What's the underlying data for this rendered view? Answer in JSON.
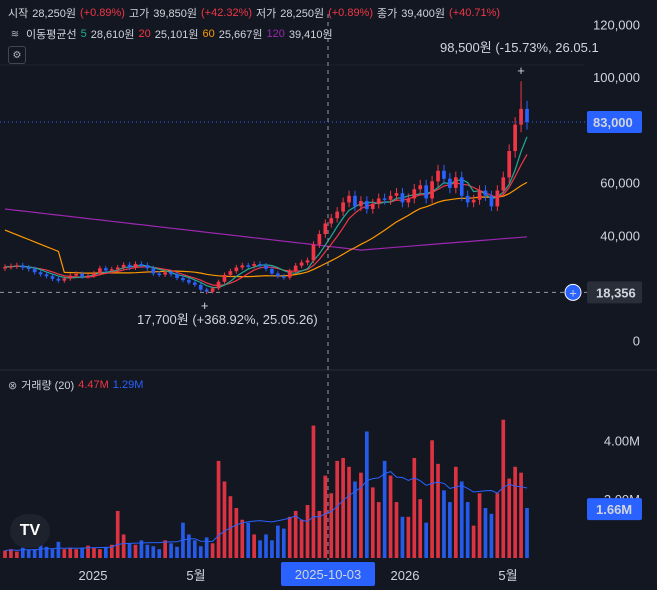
{
  "ohlc_legend": {
    "open_label": "시작",
    "open_value": "28,250원",
    "open_pct": "(+0.89%)",
    "high_label": "고가",
    "high_value": "39,850원",
    "high_pct": "(+42.32%)",
    "low_label": "저가",
    "low_value": "28,250원",
    "low_pct": "(+0.89%)",
    "close_label": "종가",
    "close_value": "39,400원",
    "close_pct": "(+40.71%)"
  },
  "ma_legend": {
    "label": "이동평균선",
    "p5": "5",
    "v5": "28,610원",
    "p20": "20",
    "v20": "25,101원",
    "p60": "60",
    "v60": "25,667원",
    "p120": "120",
    "v120": "39,410원"
  },
  "volume_legend": {
    "label": "거래량 (20)",
    "v1": "4.47M",
    "v2": "1.29M"
  },
  "annotations": {
    "max_label": "98,500원 (-15.73%, 26.05.1",
    "min_label": "17,700원 (+368.92%, 25.05.26)",
    "last_price_badge": "83,000",
    "crosshair_price_badge": "18,356",
    "crosshair_date_badge": "2025-10-03",
    "volume_last_badge": "1.66M",
    "logo_text": "TV"
  },
  "colors": {
    "background": "#131722",
    "up": "#f23645",
    "down": "#2962ff",
    "ma5": "#22ab94",
    "ma20": "#f23645",
    "ma60": "#ff9800",
    "ma120": "#9c27b0",
    "badge": "#2962ff"
  },
  "chart_data": [
    {
      "type": "candlestick",
      "price_axis": {
        "ticks": [
          0,
          20000,
          40000,
          60000,
          80000,
          100000,
          120000
        ],
        "tick_labels": [
          "0",
          "",
          "40,000",
          "60,000",
          "",
          "100,000",
          "120,000"
        ],
        "range": [
          -2000,
          124000
        ]
      },
      "time_axis": {
        "labels": [
          "2025",
          "5월",
          "2026",
          "5월"
        ]
      },
      "last_price": 83000,
      "crosshair_price": 18356,
      "max_point": 98500,
      "min_point": 17700,
      "closes": [
        28000,
        28300,
        28600,
        27800,
        27200,
        26000,
        25200,
        24500,
        23500,
        22800,
        23600,
        24700,
        25400,
        24400,
        24700,
        25600,
        27500,
        26700,
        27100,
        27800,
        28800,
        27800,
        29100,
        28700,
        27500,
        25500,
        25100,
        26000,
        25200,
        23800,
        23000,
        22100,
        21200,
        19400,
        18600,
        19900,
        22400,
        25000,
        26400,
        27800,
        28600,
        28400,
        29100,
        28500,
        27300,
        25500,
        24500,
        24000,
        26400,
        28500,
        29700,
        30500,
        36500,
        40500,
        44500,
        46500,
        49000,
        52500,
        55000,
        51000,
        53000,
        50000,
        52000,
        54000,
        53500,
        55000,
        56000,
        52500,
        54000,
        57500,
        59000,
        54000,
        60500,
        64500,
        61500,
        58000,
        62000,
        55000,
        52500,
        53500,
        57000,
        55000,
        51000,
        57000,
        62000,
        72000,
        82000,
        88000,
        83000
      ],
      "ma": {
        "p5": [
          28000,
          28150,
          28300,
          28200,
          28000,
          27600,
          27000,
          26100,
          25300,
          24600,
          24000,
          23800,
          24000,
          24100,
          24500,
          24900,
          25900,
          26000,
          26300,
          26800,
          27700,
          28000,
          28400,
          28600,
          28400,
          27700,
          27100,
          26600,
          25900,
          25100,
          24600,
          24000,
          23100,
          22100,
          20900,
          20200,
          20200,
          21100,
          22500,
          24400,
          25900,
          27200,
          28000,
          28600,
          28800,
          28500,
          27700,
          26600,
          25800,
          25600,
          26500,
          27300,
          30400,
          33000,
          36300,
          39800,
          43400,
          46600,
          49500,
          50800,
          52100,
          52300,
          52600,
          52000,
          52600,
          52700,
          54100,
          54200,
          55000,
          55300,
          55800,
          55800,
          56600,
          58100,
          60000,
          59600,
          60600,
          61200,
          60000,
          56600,
          56900,
          55700,
          53900,
          54600,
          56400,
          59400,
          64800,
          71800,
          77400
        ]
      }
    },
    {
      "type": "bar",
      "title": "거래량 (20)",
      "value_axis": {
        "ticks": [
          2000000,
          4000000
        ],
        "tick_labels": [
          "2.00M",
          "4.00M"
        ],
        "range": [
          0,
          5200000
        ]
      },
      "last_value": 1660000,
      "values": [
        0.25,
        0.3,
        0.22,
        0.35,
        0.28,
        0.3,
        0.45,
        0.38,
        0.3,
        0.55,
        0.3,
        0.35,
        0.3,
        0.35,
        0.42,
        0.35,
        0.3,
        0.38,
        0.45,
        1.6,
        0.8,
        0.5,
        0.45,
        0.6,
        0.45,
        0.4,
        0.3,
        0.6,
        0.5,
        0.38,
        1.2,
        0.8,
        0.6,
        0.4,
        0.7,
        0.5,
        3.3,
        2.6,
        2.1,
        1.7,
        1.3,
        1.2,
        0.8,
        0.6,
        0.8,
        0.6,
        1.1,
        1.0,
        1.4,
        1.6,
        1.3,
        1.8,
        4.5,
        1.6,
        2.8,
        2.2,
        3.3,
        3.4,
        3.1,
        2.6,
        2.9,
        4.3,
        2.4,
        1.9,
        3.3,
        2.8,
        1.9,
        1.4,
        1.4,
        3.4,
        2.0,
        1.2,
        4.0,
        3.2,
        2.3,
        1.9,
        3.1,
        2.6,
        1.9,
        1.1,
        2.2,
        1.7,
        1.5,
        2.2,
        4.7,
        2.7,
        3.1,
        2.9,
        1.7
      ]
    }
  ]
}
